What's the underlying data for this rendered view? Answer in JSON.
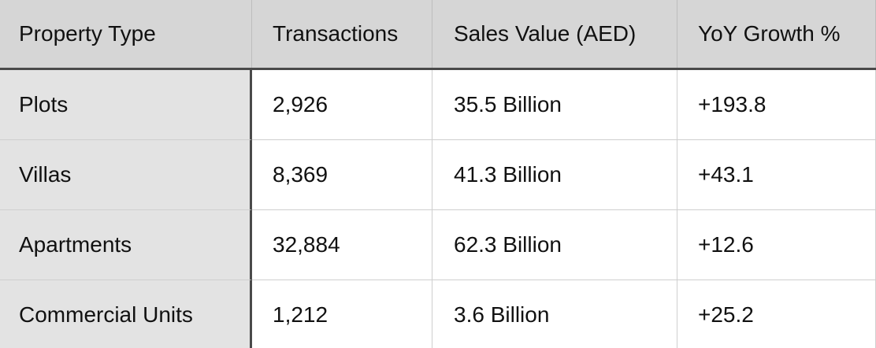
{
  "table": {
    "header": [
      "Property Type",
      "Transactions",
      "Sales Value (AED)",
      "YoY Growth %"
    ],
    "rows": [
      [
        "Plots",
        "2,926",
        "35.5 Billion",
        "+193.8"
      ],
      [
        "Villas",
        "8,369",
        "41.3 Billion",
        "+43.1"
      ],
      [
        "Apartments",
        "32,884",
        "62.3 Billion",
        "+12.6"
      ],
      [
        "Commercial Units",
        "1,212",
        "3.6 Billion",
        "+25.2"
      ]
    ]
  }
}
